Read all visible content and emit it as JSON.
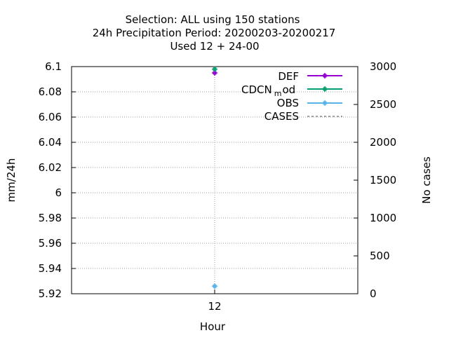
{
  "chart_data": {
    "type": "line",
    "title_lines": [
      "Selection: ALL using   150 stations",
      "24h Precipitation   Period: 20200203-20200217",
      "Used  12 + 24-00"
    ],
    "xlabel": "Hour",
    "ylabel": "mm/24h",
    "y2label": "No cases",
    "x_categories": [
      "12"
    ],
    "ylim": [
      5.92,
      6.1
    ],
    "y_ticks": [
      "5.92",
      "5.94",
      "5.96",
      "5.98",
      "6",
      "6.02",
      "6.04",
      "6.06",
      "6.08",
      "6.1"
    ],
    "y2lim": [
      0,
      3000
    ],
    "y2_ticks": [
      "0",
      "500",
      "1000",
      "1500",
      "2000",
      "2500",
      "3000"
    ],
    "grid": true,
    "legend_placement": "top-right",
    "series": [
      {
        "name": "DEF",
        "color": "#9400d3",
        "marker": "plus-square",
        "x": [
          "12"
        ],
        "values": [
          6.095
        ]
      },
      {
        "name": "CDCN_mod",
        "label_main": "CDCN",
        "label_sub": "m",
        "label_rest": "od",
        "color": "#009e73",
        "marker": "plus-square",
        "x": [
          "12"
        ],
        "values": [
          6.098
        ]
      },
      {
        "name": "OBS",
        "color": "#56b4e9",
        "marker": "plus-square",
        "x": [
          "12"
        ],
        "values": [
          5.926
        ]
      },
      {
        "name": "CASES",
        "color": "#888888",
        "marker": "none",
        "dashed": true,
        "axis": "y2",
        "x": [
          "12"
        ],
        "values": [
          null
        ]
      }
    ]
  }
}
